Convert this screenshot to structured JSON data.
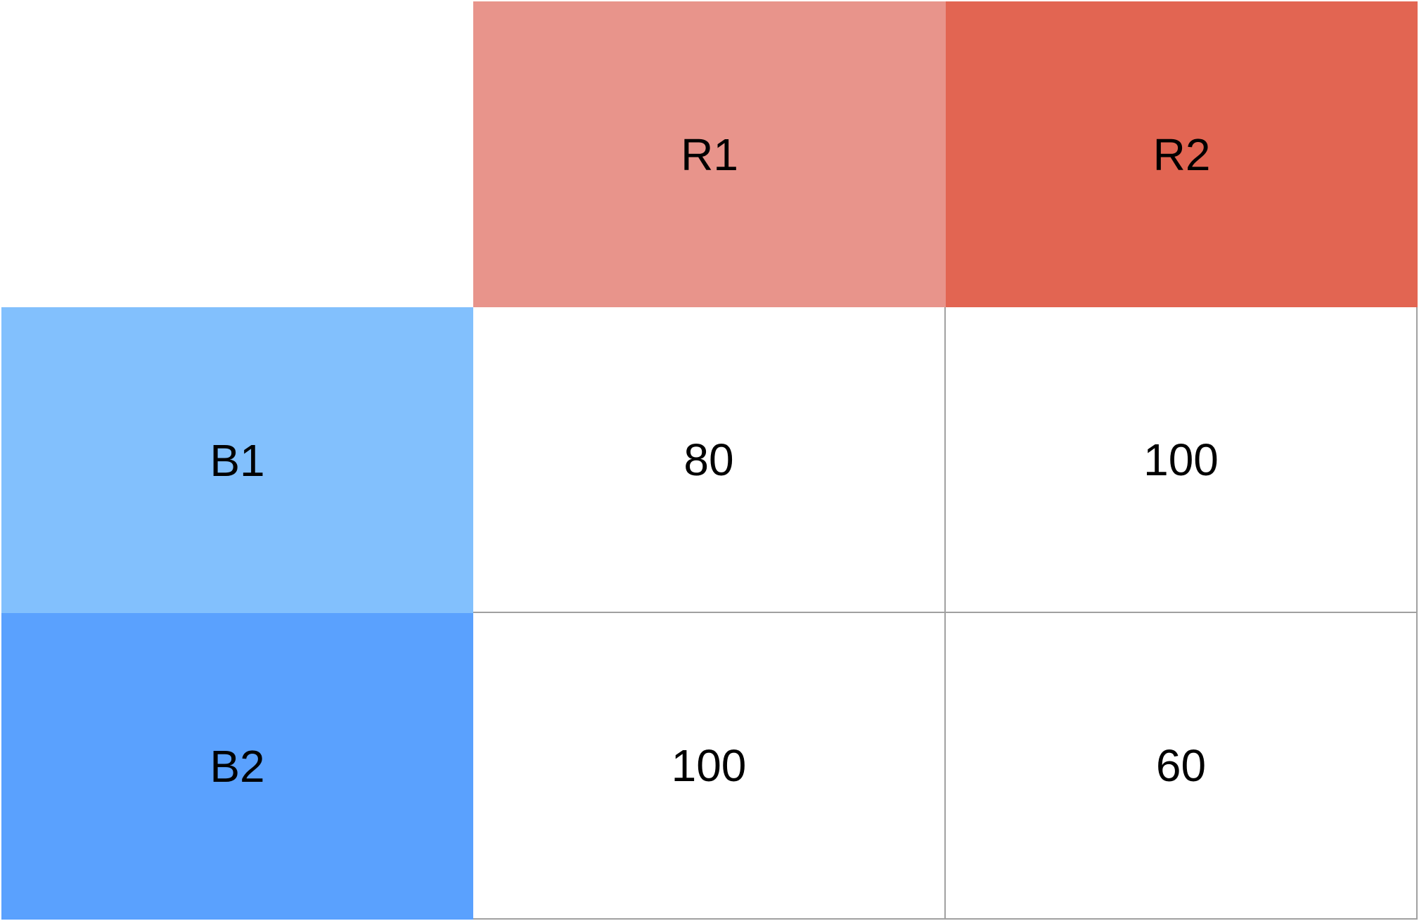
{
  "corner": "",
  "columns": [
    {
      "label": "R1",
      "color": "#e8948b"
    },
    {
      "label": "R2",
      "color": "#e26552"
    }
  ],
  "rows": [
    {
      "label": "B1",
      "color": "#82c0fd"
    },
    {
      "label": "B2",
      "color": "#5aa1fe"
    }
  ],
  "values": [
    [
      "80",
      "100"
    ],
    [
      "100",
      "60"
    ]
  ],
  "grid_color": "#a0a0a0"
}
